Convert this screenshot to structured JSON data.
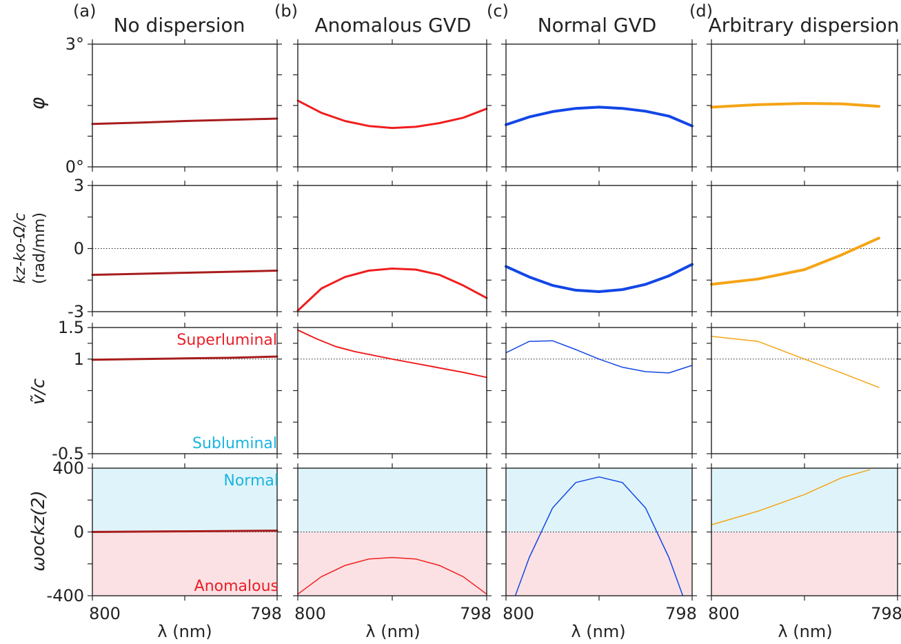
{
  "colors": {
    "none": "#a81c1c",
    "anomalous": "#f01e1e",
    "normal": "#1246e6",
    "arbitrary": "#f5a416",
    "normal_region": "#dff4fa",
    "anomalous_region": "#fbe1e3",
    "superluminal_text": "#e8202a",
    "subluminal_text": "#1ab4e0"
  },
  "chart_data": {
    "type": "line",
    "columns": [
      {
        "letter": "(a)",
        "title": "No dispersion",
        "color_key": "none"
      },
      {
        "letter": "(b)",
        "title": "Anomalous GVD",
        "color_key": "anomalous"
      },
      {
        "letter": "(c)",
        "title": "Normal GVD",
        "color_key": "normal"
      },
      {
        "letter": "(d)",
        "title": "Arbitrary dispersion",
        "color_key": "arbitrary"
      }
    ],
    "x": {
      "label": "λ (nm)",
      "tick_labels": [
        "800",
        "798"
      ],
      "range": [
        800,
        798
      ]
    },
    "rows": [
      {
        "id": "phi",
        "ylabel": "φ",
        "ylim": [
          0,
          3
        ],
        "tick_labels": [
          {
            "value": 3,
            "text": "3°"
          },
          {
            "value": 0,
            "text": "0°"
          }
        ],
        "minor_ticks": [
          0.75,
          1.5,
          2.25
        ],
        "ref_line": null,
        "series": [
          {
            "x": [
              800,
              799.5,
              799,
              798.5,
              798
            ],
            "y": [
              1.05,
              1.08,
              1.12,
              1.15,
              1.18
            ],
            "width": 3
          },
          {
            "x": [
              800,
              799.75,
              799.5,
              799.25,
              799,
              798.75,
              798.5,
              798.25,
              798
            ],
            "y": [
              1.62,
              1.32,
              1.12,
              1.0,
              0.95,
              0.98,
              1.07,
              1.2,
              1.42
            ],
            "width": 3
          },
          {
            "x": [
              800,
              799.75,
              799.5,
              799.25,
              799,
              798.75,
              798.5,
              798.25,
              798
            ],
            "y": [
              1.03,
              1.22,
              1.35,
              1.43,
              1.46,
              1.43,
              1.36,
              1.24,
              1.0
            ],
            "width": 4
          },
          {
            "x": [
              800,
              799.5,
              799,
              798.6,
              798.2
            ],
            "y": [
              1.46,
              1.52,
              1.55,
              1.54,
              1.48
            ],
            "width": 4
          }
        ]
      },
      {
        "id": "dk",
        "ylabel": "kz-ko-Ω/c",
        "ylabel_units": "(rad/mm)",
        "ylim": [
          -3,
          3
        ],
        "tick_labels": [
          {
            "value": 3,
            "text": "3"
          },
          {
            "value": 0,
            "text": "0"
          },
          {
            "value": -3,
            "text": "-3"
          }
        ],
        "minor_ticks": [
          -1.5,
          1.5
        ],
        "ref_line": 0,
        "series": [
          {
            "x": [
              800,
              799.5,
              799,
              798.5,
              798
            ],
            "y": [
              -1.25,
              -1.2,
              -1.15,
              -1.1,
              -1.05
            ],
            "width": 3
          },
          {
            "x": [
              800,
              799.75,
              799.5,
              799.25,
              799,
              798.75,
              798.5,
              798.25,
              798
            ],
            "y": [
              -2.95,
              -1.9,
              -1.35,
              -1.05,
              -0.95,
              -1.0,
              -1.25,
              -1.75,
              -2.35
            ],
            "width": 3
          },
          {
            "x": [
              800,
              799.75,
              799.5,
              799.25,
              799,
              798.75,
              798.5,
              798.25,
              798
            ],
            "y": [
              -0.85,
              -1.35,
              -1.75,
              -1.98,
              -2.05,
              -1.95,
              -1.7,
              -1.3,
              -0.75
            ],
            "width": 4
          },
          {
            "x": [
              800,
              799.5,
              799,
              798.6,
              798.4,
              798.2
            ],
            "y": [
              -1.7,
              -1.45,
              -1.0,
              -0.3,
              0.1,
              0.5
            ],
            "width": 4
          }
        ]
      },
      {
        "id": "v",
        "ylabel": "ṽ/c",
        "ylim": [
          -0.5,
          1.5
        ],
        "tick_labels": [
          {
            "value": 1.5,
            "text": "1.5"
          },
          {
            "value": 1,
            "text": "1"
          },
          {
            "value": -0.5,
            "text": "-0.5"
          }
        ],
        "minor_ticks": [
          1.25,
          0.5,
          0.0
        ],
        "ref_line": 1,
        "annotation_top": "Superluminal",
        "annotation_bottom": "Subluminal",
        "series": [
          {
            "x": [
              800,
              799.5,
              799,
              798.5,
              798
            ],
            "y": [
              0.99,
              1.0,
              1.01,
              1.02,
              1.04
            ],
            "width": 3
          },
          {
            "x": [
              800,
              799.8,
              799.6,
              799.4,
              799.2,
              799,
              798.75,
              798.5,
              798.25,
              798
            ],
            "y": [
              1.46,
              1.32,
              1.2,
              1.12,
              1.06,
              1.0,
              0.93,
              0.86,
              0.79,
              0.71
            ],
            "width": 2
          },
          {
            "x": [
              800,
              799.75,
              799.5,
              799.25,
              799,
              798.75,
              798.5,
              798.25,
              798
            ],
            "y": [
              1.1,
              1.28,
              1.29,
              1.15,
              1.0,
              0.87,
              0.8,
              0.78,
              0.9
            ],
            "width": 1.5
          },
          {
            "x": [
              800,
              799.5,
              799,
              798.6,
              798.2
            ],
            "y": [
              1.36,
              1.28,
              1.0,
              0.78,
              0.55
            ],
            "width": 1.5
          }
        ]
      },
      {
        "id": "k2",
        "ylabel": "ωockz(2)",
        "ylim": [
          -400,
          400
        ],
        "tick_labels": [
          {
            "value": 400,
            "text": "400"
          },
          {
            "value": 0,
            "text": "0"
          },
          {
            "value": -400,
            "text": "-400"
          }
        ],
        "minor_ticks": [
          200,
          -200
        ],
        "ref_line": 0,
        "shaded_regions": true,
        "annotation_top": "Normal",
        "annotation_bottom": "Anomalous",
        "series": [
          {
            "x": [
              800,
              799.5,
              799,
              798.5,
              798
            ],
            "y": [
              0,
              2,
              4,
              6,
              8
            ],
            "width": 3
          },
          {
            "x": [
              800,
              799.75,
              799.5,
              799.25,
              799,
              798.75,
              798.5,
              798.25,
              798
            ],
            "y": [
              -390,
              -280,
              -210,
              -170,
              -160,
              -170,
              -210,
              -280,
              -390
            ],
            "width": 1.5
          },
          {
            "x": [
              799.9,
              799.75,
              799.5,
              799.25,
              799,
              798.75,
              798.5,
              798.25,
              798.1
            ],
            "y": [
              -400,
              -160,
              150,
              310,
              345,
              310,
              150,
              -160,
              -400
            ],
            "width": 1.5
          },
          {
            "x": [
              800,
              799.5,
              799,
              798.6,
              798.3
            ],
            "y": [
              45,
              130,
              235,
              340,
              390
            ],
            "width": 1.5
          }
        ]
      }
    ]
  }
}
